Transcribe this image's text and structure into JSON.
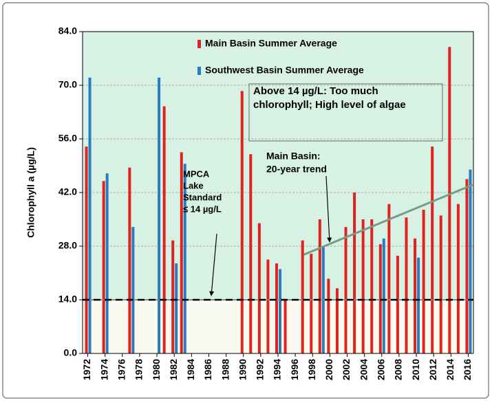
{
  "chart_data": {
    "type": "bar",
    "ylabel": "Chlorophyll a (µg/L)",
    "x": [
      1972,
      1973,
      1974,
      1975,
      1976,
      1977,
      1978,
      1979,
      1980,
      1981,
      1982,
      1983,
      1984,
      1985,
      1986,
      1987,
      1988,
      1989,
      1990,
      1991,
      1992,
      1993,
      1994,
      1995,
      1996,
      1997,
      1998,
      1999,
      2000,
      2001,
      2002,
      2003,
      2004,
      2005,
      2006,
      2007,
      2008,
      2009,
      2010,
      2011,
      2012,
      2013,
      2014,
      2015,
      2016
    ],
    "xlim": [
      1971.4,
      2016.6
    ],
    "xticks": [
      1972,
      1974,
      1976,
      1978,
      1980,
      1982,
      1984,
      1986,
      1988,
      1990,
      1992,
      1994,
      1996,
      1998,
      2000,
      2002,
      2004,
      2006,
      2008,
      2010,
      2012,
      2014,
      2016
    ],
    "ylim": [
      0,
      84
    ],
    "yticks": [
      {
        "value": 0,
        "label": "0.0"
      },
      {
        "value": 14,
        "label": "14.0"
      },
      {
        "value": 28,
        "label": "28.0"
      },
      {
        "value": 42,
        "label": "42.0"
      },
      {
        "value": 56,
        "label": "56.0"
      },
      {
        "value": 70,
        "label": "70.0"
      },
      {
        "value": 84,
        "label": "84.0"
      }
    ],
    "grid": true,
    "series": [
      {
        "name": "Main Basin Summer Average",
        "color": "#e0231d",
        "values": [
          54,
          null,
          45,
          null,
          null,
          48.5,
          null,
          null,
          null,
          64.5,
          29.5,
          52.5,
          null,
          null,
          null,
          null,
          null,
          null,
          68.5,
          52,
          34,
          24.5,
          23.5,
          14,
          null,
          29.5,
          26,
          35,
          19.5,
          17,
          33,
          42,
          35,
          35,
          28.5,
          39,
          25.5,
          35.5,
          30,
          37.5,
          54,
          36,
          80,
          39,
          45.5
        ]
      },
      {
        "name": "Southwest Basin Summer Average",
        "color": "#2a7bc0",
        "values": [
          72,
          null,
          47,
          null,
          null,
          33,
          null,
          null,
          72,
          null,
          23.5,
          49.5,
          null,
          null,
          null,
          null,
          null,
          null,
          null,
          null,
          null,
          null,
          22,
          null,
          null,
          null,
          null,
          28,
          null,
          null,
          null,
          null,
          null,
          null,
          30,
          null,
          null,
          null,
          25,
          null,
          null,
          null,
          null,
          null,
          48
        ]
      }
    ],
    "standard": 14,
    "trend": {
      "x": [
        1997,
        2016.5
      ],
      "values": [
        25.8,
        44
      ]
    },
    "annotations": {
      "box": [
        "Above 14 µg/L:   Too much",
        "chlorophyll; High level of   algae"
      ],
      "trend_label": [
        "Main Basin:",
        "20-year trend"
      ],
      "standard_label": [
        "MPCA",
        "Lake",
        "Standard",
        "≤ 14 µg/L"
      ]
    }
  }
}
